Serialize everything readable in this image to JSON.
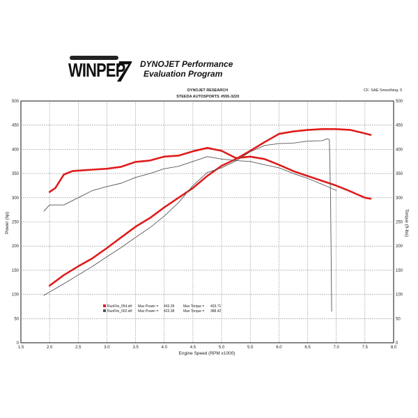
{
  "header": {
    "logo_text": "WINPEP",
    "logo_seven": "7",
    "brand_title": "DYNOJET Performance",
    "brand_subtitle": "Evaluation Program",
    "research": "DYNOJET RESEARCH",
    "shop": "STEEDA AUTOSPORTS",
    "phone": "#555-3220",
    "settings": "CF: SAE  Smoothing: 5"
  },
  "chart_data": {
    "type": "line",
    "xlabel": "Engine Speed (RPM x1000)",
    "ylabel_left": "Power (hp)",
    "ylabel_right": "Torque (ft-lbs)",
    "xlim": [
      1.5,
      8.0
    ],
    "ylim": [
      0,
      500
    ],
    "x_ticks": [
      "1.5",
      "2.0",
      "2.5",
      "3.0",
      "3.5",
      "4.0",
      "4.5",
      "5.0",
      "5.5",
      "6.0",
      "6.5",
      "7.0",
      "7.5",
      "8.0"
    ],
    "y_ticks_left": [
      "0",
      "50",
      "100",
      "150",
      "200",
      "250",
      "300",
      "350",
      "400",
      "450",
      "500"
    ],
    "y_ticks_right": [
      "0",
      "50",
      "100",
      "150",
      "200",
      "250",
      "300",
      "350",
      "400",
      "450",
      "500"
    ],
    "grid": true,
    "legend": [
      {
        "file": "RunFile_054.drf",
        "max_power_label": "Max Power =",
        "max_power": "443.39",
        "max_torque_label": "Max Torque =",
        "max_torque": "403.71",
        "color": "#e01b1b"
      },
      {
        "file": "RunFile_002.drf",
        "max_power_label": "Max Power =",
        "max_power": "423.38",
        "max_torque_label": "Max Torque =",
        "max_torque": "388.42",
        "color": "#555555"
      }
    ],
    "series": [
      {
        "name": "RunFile_054.drf",
        "measure": "power",
        "color": "#e01b1b",
        "x": [
          2.0,
          2.25,
          2.5,
          2.75,
          3.0,
          3.25,
          3.5,
          3.75,
          4.0,
          4.25,
          4.5,
          4.75,
          5.0,
          5.25,
          5.5,
          5.75,
          6.0,
          6.25,
          6.5,
          6.75,
          7.0,
          7.25,
          7.5,
          7.6
        ],
        "y": [
          118,
          140,
          158,
          175,
          196,
          218,
          240,
          258,
          280,
          300,
          320,
          345,
          366,
          380,
          397,
          415,
          432,
          437,
          440,
          442,
          442,
          440,
          433,
          430
        ]
      },
      {
        "name": "RunFile_054.drf",
        "measure": "torque",
        "color": "#e01b1b",
        "x": [
          2.0,
          2.1,
          2.25,
          2.4,
          2.5,
          2.75,
          3.0,
          3.25,
          3.5,
          3.75,
          4.0,
          4.25,
          4.5,
          4.75,
          5.0,
          5.25,
          5.5,
          5.75,
          6.0,
          6.25,
          6.5,
          6.75,
          7.0,
          7.25,
          7.5,
          7.6
        ],
        "y": [
          312,
          320,
          348,
          355,
          356,
          358,
          360,
          364,
          374,
          377,
          385,
          387,
          396,
          403,
          397,
          382,
          385,
          380,
          368,
          355,
          345,
          335,
          325,
          313,
          300,
          298
        ]
      },
      {
        "name": "RunFile_002.drf",
        "measure": "power",
        "color": "#555555",
        "x": [
          1.9,
          2.0,
          2.25,
          2.5,
          2.75,
          3.0,
          3.25,
          3.5,
          3.75,
          4.0,
          4.25,
          4.5,
          4.75,
          5.0,
          5.25,
          5.5,
          5.75,
          6.0,
          6.25,
          6.5,
          6.75,
          6.85,
          6.88,
          6.9,
          6.92
        ],
        "y": [
          98,
          105,
          122,
          140,
          158,
          178,
          197,
          218,
          238,
          262,
          290,
          325,
          352,
          362,
          376,
          395,
          408,
          412,
          413,
          417,
          418,
          422,
          420,
          300,
          65
        ]
      },
      {
        "name": "RunFile_002.drf",
        "measure": "torque",
        "color": "#555555",
        "x": [
          1.9,
          2.0,
          2.25,
          2.5,
          2.75,
          3.0,
          3.25,
          3.5,
          3.75,
          4.0,
          4.25,
          4.5,
          4.75,
          5.0,
          5.25,
          5.5,
          5.75,
          6.0,
          6.25,
          6.5,
          6.75,
          7.0
        ],
        "y": [
          272,
          285,
          285,
          300,
          315,
          323,
          330,
          342,
          350,
          360,
          365,
          375,
          385,
          380,
          377,
          375,
          368,
          362,
          350,
          340,
          328,
          315
        ]
      }
    ]
  }
}
